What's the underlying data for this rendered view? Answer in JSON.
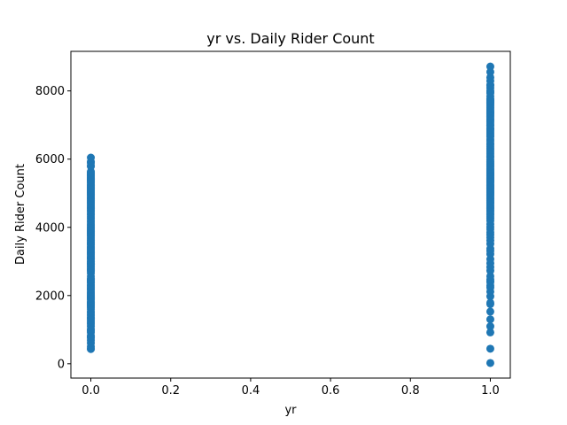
{
  "chart_data": {
    "type": "scatter",
    "title": "yr vs. Daily Rider Count",
    "xlabel": "yr",
    "ylabel": "Daily Rider Count",
    "xlim": [
      -0.05,
      1.05
    ],
    "ylim": [
      -420,
      9160
    ],
    "xticks": [
      0.0,
      0.2,
      0.4,
      0.6,
      0.8,
      1.0
    ],
    "xtick_labels": [
      "0.0",
      "0.2",
      "0.4",
      "0.6",
      "0.8",
      "1.0"
    ],
    "yticks": [
      0,
      2000,
      4000,
      6000,
      8000
    ],
    "ytick_labels": [
      "0",
      "2000",
      "4000",
      "6000",
      "8000"
    ],
    "grid": false,
    "marker_color": "#1f77b4",
    "series": [
      {
        "x": [
          0,
          0,
          0,
          0,
          0,
          0,
          0,
          0,
          0,
          0,
          0,
          0,
          0,
          0,
          0,
          0,
          0,
          0,
          0,
          0,
          0,
          0,
          0,
          0,
          0,
          0,
          0,
          0,
          0,
          0,
          0,
          0,
          0,
          0,
          0,
          0,
          0,
          0,
          0,
          0,
          0,
          0,
          0,
          0,
          0,
          0,
          0,
          0,
          0,
          0,
          0,
          0,
          0,
          0,
          0,
          0,
          0,
          0,
          0,
          0,
          0,
          0,
          0,
          0,
          0,
          0,
          0,
          0,
          0,
          0,
          0,
          0,
          0,
          0,
          0,
          0,
          0,
          0,
          0,
          0,
          0,
          0,
          0,
          0,
          0,
          0,
          0,
          0,
          0,
          0,
          0,
          0,
          0,
          0,
          0,
          0,
          0,
          0,
          0,
          0,
          0,
          0,
          0,
          0
        ],
        "y": [
          431,
          441,
          506,
          605,
          683,
          754,
          795,
          822,
          920,
          959,
          986,
          1013,
          1096,
          1167,
          1204,
          1248,
          1301,
          1341,
          1360,
          1416,
          1450,
          1501,
          1530,
          1600,
          1650,
          1685,
          1708,
          1746,
          1777,
          1795,
          1815,
          1872,
          1913,
          1927,
          1951,
          1985,
          2014,
          2046,
          2077,
          2114,
          2162,
          2192,
          2210,
          2252,
          2294,
          2311,
          2368,
          2402,
          2423,
          2455,
          2471,
          2496,
          2566,
          2660,
          2710,
          2744,
          2765,
          2792,
          2832,
          2869,
          2914,
          2927,
          2947,
          2986,
          3005,
          3068,
          3095,
          3115,
          3141,
          3190,
          3214,
          3249,
          3272,
          3310,
          3348,
          3376,
          3409,
          3422,
          3485,
          3512,
          3544,
          3574,
          3614,
          3659,
          3700,
          3747,
          3784,
          3817,
          3855,
          3872,
          3910,
          3944,
          3974,
          4010,
          4053,
          4098,
          4150,
          4195,
          4258,
          4308,
          4363,
          4401,
          4459,
          4507
        ]
      },
      {
        "x": [
          0,
          0,
          0,
          0,
          0,
          0,
          0,
          0,
          0,
          0,
          0,
          0,
          0,
          0,
          0,
          0,
          0,
          0,
          0,
          0,
          0,
          0,
          0,
          0,
          0,
          0,
          0,
          0,
          0,
          0,
          0,
          0,
          0,
          0,
          0,
          0,
          0,
          0,
          0,
          0,
          0,
          0,
          0
        ],
        "y": [
          4548,
          4585,
          4618,
          4656,
          4694,
          4727,
          4760,
          4795,
          4835,
          4866,
          4906,
          4940,
          4978,
          5010,
          5035,
          5060,
          5084,
          5115,
          5145,
          5170,
          5202,
          5225,
          5260,
          5305,
          5336,
          5362,
          5382,
          5405,
          5423,
          5445,
          5463,
          5499,
          5520,
          5538,
          5558,
          5584,
          5611,
          5633,
          5786,
          5892,
          5923,
          6043,
          5805
        ]
      },
      {
        "x": [
          1,
          1,
          1,
          1,
          1,
          1,
          1,
          1,
          1,
          1,
          1,
          1,
          1,
          1,
          1,
          1,
          1,
          1,
          1,
          1,
          1,
          1,
          1,
          1,
          1,
          1,
          1,
          1,
          1,
          1,
          1,
          1,
          1,
          1,
          1,
          1,
          1,
          1,
          1,
          1,
          1,
          1,
          1,
          1,
          1,
          1,
          1,
          1,
          1,
          1,
          1,
          1,
          1,
          1,
          1,
          1,
          1,
          1,
          1,
          1,
          1,
          1,
          1,
          1,
          1,
          1,
          1,
          1,
          1,
          1,
          1,
          1,
          1,
          1,
          1,
          1,
          1,
          1,
          1,
          1,
          1,
          1,
          1,
          1,
          1,
          1,
          1,
          1,
          1,
          1,
          1,
          1,
          1,
          1,
          1,
          1,
          1,
          1,
          1,
          1
        ],
        "y": [
          22,
          441,
          920,
          1096,
          1301,
          1529,
          1749,
          1787,
          1977,
          2114,
          2236,
          2294,
          2395,
          2425,
          2475,
          2566,
          2729,
          2832,
          2947,
          3068,
          3214,
          3310,
          3376,
          3512,
          3614,
          3700,
          3784,
          3855,
          3944,
          4010,
          4098,
          4195,
          4258,
          4308,
          4363,
          4401,
          4459,
          4507,
          4548,
          4585,
          4618,
          4656,
          4694,
          4727,
          4760,
          4795,
          4835,
          4866,
          4906,
          4940,
          4978,
          5010,
          5035,
          5060,
          5084,
          5115,
          5145,
          5170,
          5202,
          5225,
          5260,
          5305,
          5336,
          5362,
          5382,
          5405,
          5423,
          5445,
          5463,
          5499,
          5520,
          5538,
          5558,
          5584,
          5611,
          5633,
          5668,
          5698,
          5729,
          5786,
          5805,
          5847,
          5892,
          5923,
          5976,
          6043,
          6093,
          6153,
          6207,
          6269,
          6312,
          6370,
          6421,
          6460,
          6536,
          6591,
          6660,
          6685,
          6734,
          6770
        ]
      },
      {
        "x": [
          1,
          1,
          1,
          1,
          1,
          1,
          1,
          1,
          1,
          1,
          1,
          1,
          1,
          1,
          1,
          1,
          1,
          1,
          1,
          1,
          1,
          1,
          1,
          1,
          1,
          1,
          1,
          1,
          1,
          1,
          1,
          1,
          1,
          1
        ],
        "y": [
          6824,
          6869,
          6883,
          6917,
          6978,
          7001,
          7058,
          7105,
          7148,
          7175,
          7216,
          7261,
          7290,
          7335,
          7363,
          7393,
          7421,
          7461,
          7499,
          7525,
          7570,
          7605,
          7639,
          7665,
          7713,
          7736,
          7767,
          7842,
          7938,
          8009,
          8090,
          8173,
          8294,
          8395
        ]
      },
      {
        "x": [
          1,
          1,
          1,
          1,
          1
        ],
        "y": [
          8555,
          8714,
          8167,
          7965,
          7697
        ]
      }
    ]
  }
}
